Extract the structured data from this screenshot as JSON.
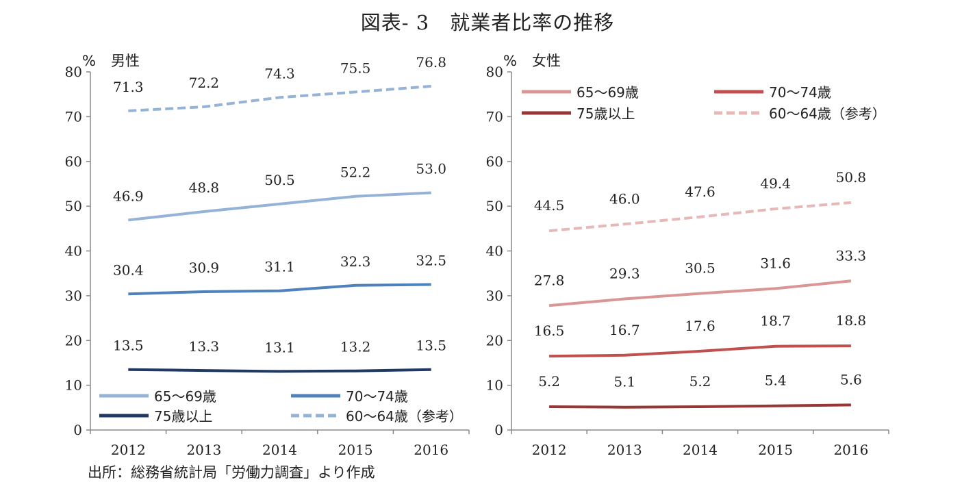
{
  "title": "図表- 3　就業者比率の推移",
  "source": "出所：総務省統計局「労働力調査」より作成",
  "chart_data": [
    {
      "type": "line",
      "panel_label": "男性",
      "unit": "%",
      "ylim": [
        0,
        80
      ],
      "yticks": [
        0,
        10,
        20,
        30,
        40,
        50,
        60,
        70,
        80
      ],
      "x": [
        "2012",
        "2013",
        "2014",
        "2015",
        "2016"
      ],
      "legend_position": "bottom-left",
      "series": [
        {
          "name": "65～69歳",
          "values": [
            46.9,
            48.8,
            50.5,
            52.2,
            53.0
          ],
          "labels": [
            "46.9",
            "48.8",
            "50.5",
            "52.2",
            "53.0"
          ],
          "color": "#95b3d7",
          "dashed": false
        },
        {
          "name": "70～74歳",
          "values": [
            30.4,
            30.9,
            31.1,
            32.3,
            32.5
          ],
          "labels": [
            "30.4",
            "30.9",
            "31.1",
            "32.3",
            "32.5"
          ],
          "color": "#4f81bd",
          "dashed": false
        },
        {
          "name": "75歳以上",
          "values": [
            13.5,
            13.3,
            13.1,
            13.2,
            13.5
          ],
          "labels": [
            "13.5",
            "13.3",
            "13.1",
            "13.2",
            "13.5"
          ],
          "color": "#1f3864",
          "dashed": false
        },
        {
          "name": "60～64歳（参考）",
          "values": [
            71.3,
            72.2,
            74.3,
            75.5,
            76.8
          ],
          "labels": [
            "71.3",
            "72.2",
            "74.3",
            "75.5",
            "76.8"
          ],
          "color": "#95b3d7",
          "dashed": true
        }
      ]
    },
    {
      "type": "line",
      "panel_label": "女性",
      "unit": "%",
      "ylim": [
        0,
        80
      ],
      "yticks": [
        0,
        10,
        20,
        30,
        40,
        50,
        60,
        70,
        80
      ],
      "x": [
        "2012",
        "2013",
        "2014",
        "2015",
        "2016"
      ],
      "legend_position": "top",
      "series": [
        {
          "name": "65～69歳",
          "values": [
            27.8,
            29.3,
            30.5,
            31.6,
            33.3
          ],
          "labels": [
            "27.8",
            "29.3",
            "30.5",
            "31.6",
            "33.3"
          ],
          "color": "#d99694",
          "dashed": false
        },
        {
          "name": "70～74歳",
          "values": [
            16.5,
            16.7,
            17.6,
            18.7,
            18.8
          ],
          "labels": [
            "16.5",
            "16.7",
            "17.6",
            "18.7",
            "18.8"
          ],
          "color": "#c0504d",
          "dashed": false
        },
        {
          "name": "75歳以上",
          "values": [
            5.2,
            5.1,
            5.2,
            5.4,
            5.6
          ],
          "labels": [
            "5.2",
            "5.1",
            "5.2",
            "5.4",
            "5.6"
          ],
          "color": "#953735",
          "dashed": false
        },
        {
          "name": "60～64歳（参考）",
          "values": [
            44.5,
            46.0,
            47.6,
            49.4,
            50.8
          ],
          "labels": [
            "44.5",
            "46.0",
            "47.6",
            "49.4",
            "50.8"
          ],
          "color": "#e6b9b8",
          "dashed": true
        }
      ]
    }
  ]
}
